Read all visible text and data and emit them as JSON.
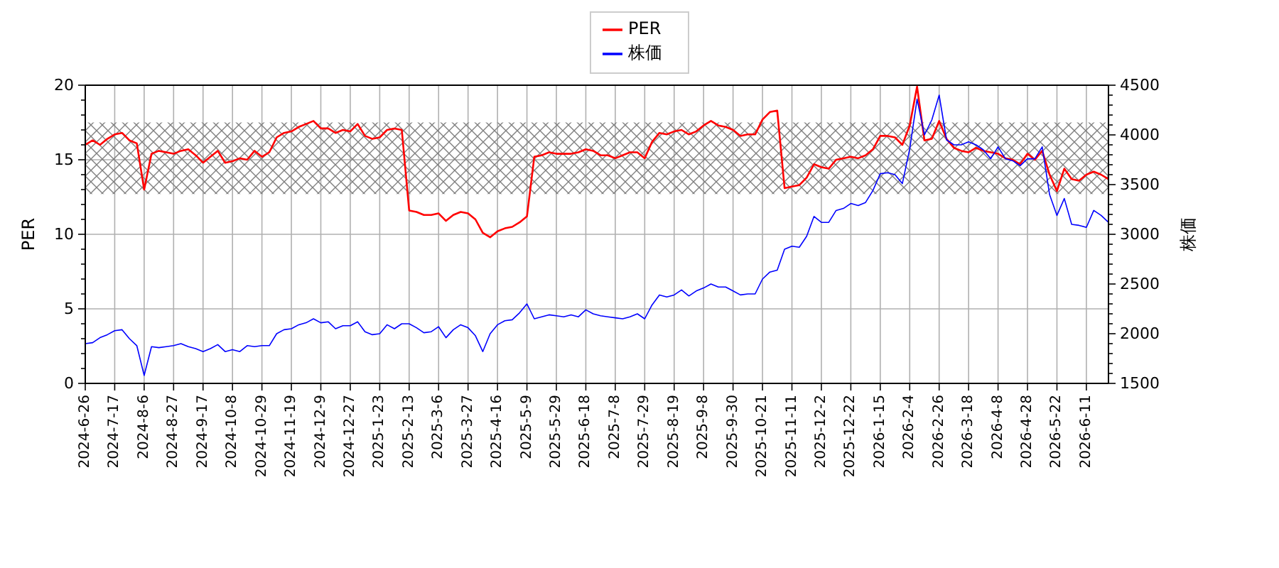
{
  "chart_data": {
    "type": "line",
    "categories": [
      "2024-6-26",
      null,
      null,
      null,
      "2024-7-17",
      null,
      null,
      null,
      "2024-8-6",
      null,
      null,
      null,
      "2024-8-27",
      null,
      null,
      null,
      "2024-9-17",
      null,
      null,
      null,
      "2024-10-8",
      null,
      null,
      null,
      "2024-10-29",
      null,
      null,
      null,
      "2024-11-19",
      null,
      null,
      null,
      "2024-12-9",
      null,
      null,
      null,
      "2024-12-27",
      null,
      null,
      null,
      "2025-1-23",
      null,
      null,
      null,
      "2025-2-13",
      null,
      null,
      null,
      "2025-3-6",
      null,
      null,
      null,
      "2025-3-27",
      null,
      null,
      null,
      "2025-4-16",
      null,
      null,
      null,
      "2025-5-9",
      null,
      null,
      null,
      "2025-5-29",
      null,
      null,
      null,
      "2025-6-18",
      null,
      null,
      null,
      "2025-7-8",
      null,
      null,
      null,
      "2025-7-29",
      null,
      null,
      null,
      "2025-8-19",
      null,
      null,
      null,
      "2025-9-8",
      null,
      null,
      null,
      "2025-9-30",
      null,
      null,
      null,
      "2025-10-21",
      null,
      null,
      null,
      "2025-11-11",
      null,
      null,
      null,
      "2025-12-2",
      null,
      null,
      null,
      "2025-12-22",
      null,
      null,
      null,
      "2026-1-15",
      null,
      null,
      null,
      "2026-2-4",
      null,
      null,
      null,
      "2026-2-26",
      null,
      null,
      null,
      "2026-3-18",
      null,
      null,
      null,
      "2026-4-8",
      null,
      null,
      null,
      "2026-4-28",
      null,
      null,
      null,
      "2026-5-22",
      null,
      null,
      null,
      "2026-6-11",
      null,
      null,
      null
    ],
    "series": [
      {
        "name": "PER",
        "color": "#ff0000",
        "values": [
          16.0,
          16.3,
          16.0,
          16.4,
          16.7,
          16.8,
          16.3,
          16.1,
          13.0,
          15.4,
          15.6,
          15.5,
          15.4,
          15.6,
          15.7,
          15.3,
          14.8,
          15.2,
          15.6,
          14.8,
          14.9,
          15.1,
          15.0,
          15.6,
          15.2,
          15.5,
          16.5,
          16.8,
          16.9,
          17.2,
          17.4,
          17.6,
          17.1,
          17.1,
          16.8,
          17.0,
          16.9,
          17.4,
          16.6,
          16.4,
          16.5,
          17.0,
          17.1,
          17.0,
          11.6,
          11.5,
          11.3,
          11.3,
          11.4,
          10.9,
          11.3,
          11.5,
          11.4,
          11.0,
          10.1,
          9.8,
          10.2,
          10.4,
          10.5,
          10.8,
          11.2,
          15.2,
          15.3,
          15.5,
          15.4,
          15.4,
          15.4,
          15.5,
          15.7,
          15.6,
          15.3,
          15.3,
          15.1,
          15.3,
          15.5,
          15.5,
          15.1,
          16.2,
          16.8,
          16.7,
          16.9,
          17.0,
          16.7,
          16.9,
          17.3,
          17.6,
          17.3,
          17.2,
          17.0,
          16.6,
          16.7,
          16.7,
          17.7,
          18.2,
          18.3,
          13.1,
          13.2,
          13.3,
          13.8,
          14.7,
          14.5,
          14.4,
          15.0,
          15.1,
          15.2,
          15.1,
          15.3,
          15.7,
          16.6,
          16.6,
          16.5,
          16.0,
          17.3,
          19.9,
          16.3,
          16.4,
          17.6,
          16.4,
          15.8,
          15.6,
          15.5,
          15.8,
          15.6,
          15.5,
          15.4,
          15.1,
          15.0,
          14.7,
          15.4,
          15.0,
          15.6,
          14.0,
          12.9,
          14.4,
          13.7,
          13.6,
          14.0,
          14.2,
          14.0,
          13.7
        ]
      },
      {
        "name": "株価",
        "color": "#0000ff",
        "axis": "y2",
        "values": [
          1900,
          1910,
          1960,
          1990,
          2030,
          2040,
          1950,
          1880,
          1580,
          1870,
          1860,
          1870,
          1880,
          1900,
          1870,
          1850,
          1820,
          1850,
          1890,
          1820,
          1840,
          1820,
          1880,
          1870,
          1880,
          1880,
          2000,
          2040,
          2050,
          2090,
          2110,
          2150,
          2110,
          2120,
          2050,
          2080,
          2080,
          2120,
          2020,
          1990,
          2000,
          2090,
          2050,
          2100,
          2100,
          2060,
          2010,
          2020,
          2070,
          1960,
          2040,
          2090,
          2060,
          1980,
          1820,
          2000,
          2090,
          2130,
          2140,
          2210,
          2300,
          2150,
          2170,
          2190,
          2180,
          2170,
          2190,
          2170,
          2240,
          2200,
          2180,
          2170,
          2160,
          2150,
          2170,
          2200,
          2150,
          2290,
          2390,
          2370,
          2390,
          2440,
          2380,
          2430,
          2460,
          2500,
          2470,
          2470,
          2430,
          2390,
          2400,
          2400,
          2550,
          2620,
          2640,
          2850,
          2880,
          2870,
          2980,
          3180,
          3120,
          3120,
          3240,
          3260,
          3310,
          3290,
          3320,
          3440,
          3610,
          3620,
          3600,
          3510,
          3860,
          4360,
          4000,
          4150,
          4400,
          3950,
          3900,
          3900,
          3930,
          3900,
          3850,
          3760,
          3880,
          3760,
          3740,
          3690,
          3760,
          3760,
          3880,
          3400,
          3190,
          3360,
          3100,
          3090,
          3070,
          3240,
          3190,
          3120
        ]
      }
    ],
    "ylabel": "PER",
    "y2label": "株価",
    "ylim": [
      0,
      20
    ],
    "yticks": [
      0,
      {
        "value": 1,
        "label": null
      },
      {
        "value": 2,
        "label": null
      },
      {
        "value": 3,
        "label": null
      },
      {
        "value": 4,
        "label": null
      },
      5,
      {
        "value": 6,
        "label": null
      },
      {
        "value": 7,
        "label": null
      },
      {
        "value": 8,
        "label": null
      },
      {
        "value": 9,
        "label": null
      },
      10,
      {
        "value": 11,
        "label": null
      },
      {
        "value": 12,
        "label": null
      },
      {
        "value": 13,
        "label": null
      },
      {
        "value": 14,
        "label": null
      },
      15,
      {
        "value": 16,
        "label": null
      },
      {
        "value": 17,
        "label": null
      },
      {
        "value": 18,
        "label": null
      },
      {
        "value": 19,
        "label": null
      },
      20
    ],
    "y2lim": [
      1500,
      4500
    ],
    "y2ticks": [
      1500,
      {
        "value": 1600,
        "label": null
      },
      {
        "value": 1700,
        "label": null
      },
      {
        "value": 1800,
        "label": null
      },
      {
        "value": 1900,
        "label": null
      },
      2000,
      {
        "value": 2100,
        "label": null
      },
      {
        "value": 2200,
        "label": null
      },
      {
        "value": 2300,
        "label": null
      },
      {
        "value": 2400,
        "label": null
      },
      2500,
      {
        "value": 2600,
        "label": null
      },
      {
        "value": 2700,
        "label": null
      },
      {
        "value": 2800,
        "label": null
      },
      {
        "value": 2900,
        "label": null
      },
      3000,
      {
        "value": 3100,
        "label": null
      },
      {
        "value": 3200,
        "label": null
      },
      {
        "value": 3300,
        "label": null
      },
      {
        "value": 3400,
        "label": null
      },
      3500,
      {
        "value": 3600,
        "label": null
      },
      {
        "value": 3700,
        "label": null
      },
      {
        "value": 3800,
        "label": null
      },
      {
        "value": 3900,
        "label": null
      },
      4000,
      {
        "value": 4100,
        "label": null
      },
      {
        "value": 4200,
        "label": null
      },
      {
        "value": 4300,
        "label": null
      },
      {
        "value": 4400,
        "label": null
      },
      4500
    ],
    "bands": [
      {
        "axis": "y",
        "from": 12.7,
        "to": 17.5,
        "color": "#808080"
      }
    ],
    "grid": true,
    "legend": "top"
  }
}
